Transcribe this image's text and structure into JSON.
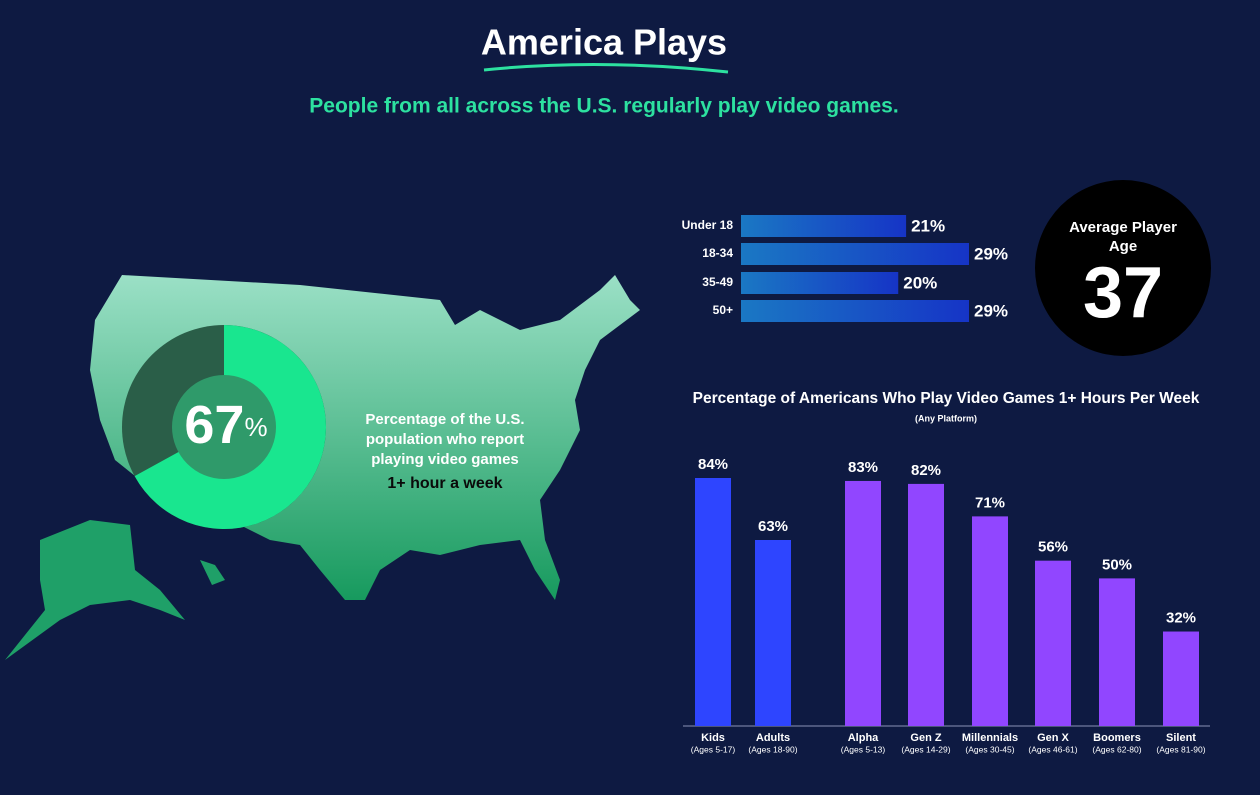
{
  "title": "America Plays",
  "subtitle": "People from all across the U.S. regularly play video games.",
  "chart_data": [
    {
      "type": "donut",
      "values": [
        67
      ],
      "ylim": [
        0,
        100
      ],
      "unit": "%",
      "color": "#19e68f",
      "rest_color": "#2a5e48",
      "caption": "Percentage of the U.S. population who report playing video games",
      "caption_highlight": "1+ hour a week"
    },
    {
      "type": "bar",
      "orientation": "horizontal",
      "categories": [
        "Under 18",
        "18-34",
        "35-49",
        "50+"
      ],
      "values": [
        21,
        29,
        20,
        29
      ],
      "value_labels": [
        "21%",
        "29%",
        "20%",
        "29%"
      ]
    },
    {
      "type": "stat",
      "label": "Average Player Age",
      "value": 37
    },
    {
      "type": "bar",
      "orientation": "vertical",
      "title": "Percentage of Americans Who Play Video Games 1+ Hours Per Week",
      "subtitle": "(Any Platform)",
      "categories": [
        "Kids",
        "Adults",
        "Alpha",
        "Gen Z",
        "Millennials",
        "Gen X",
        "Boomers",
        "Silent"
      ],
      "category_notes": [
        "(Ages 5-17)",
        "(Ages 18-90)",
        "(Ages 5-13)",
        "(Ages 14-29)",
        "(Ages 30-45)",
        "(Ages 46-61)",
        "(Ages 62-80)",
        "(Ages 81-90)"
      ],
      "values": [
        84,
        63,
        83,
        82,
        71,
        56,
        50,
        32
      ],
      "value_labels": [
        "84%",
        "63%",
        "83%",
        "82%",
        "71%",
        "56%",
        "50%",
        "32%"
      ],
      "colors": [
        "#2e45ff",
        "#2e45ff",
        "#9146ff",
        "#9146ff",
        "#9146ff",
        "#9146ff",
        "#9146ff",
        "#9146ff"
      ]
    }
  ]
}
